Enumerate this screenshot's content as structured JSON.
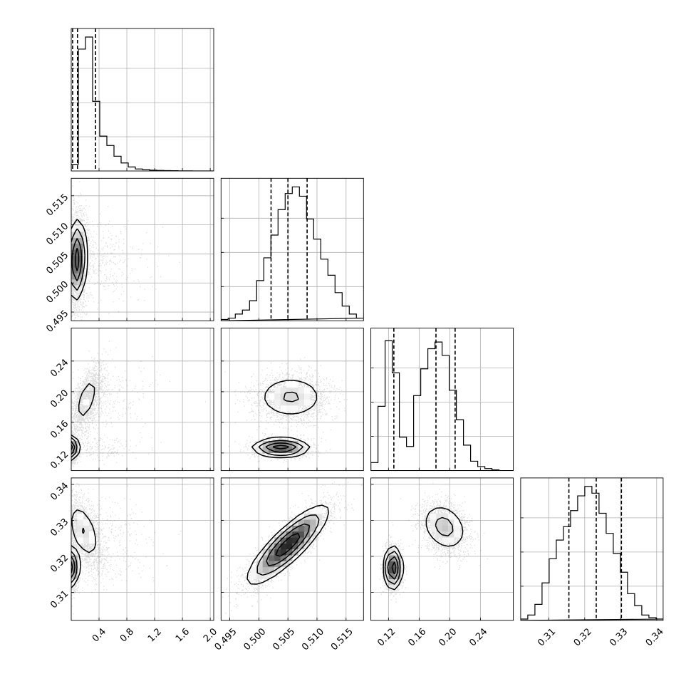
{
  "chart_data": {
    "type": "corner",
    "title": "",
    "variables": [
      {
        "label": "",
        "range": [
          0.0,
          2.05
        ],
        "ticks": [
          0.4,
          0.8,
          1.2,
          1.6,
          2.0
        ],
        "tick_labels": [
          "0.4",
          "0.8",
          "1.2",
          "1.6",
          "2.0"
        ],
        "quantiles": [
          0.02,
          0.09,
          0.35
        ]
      },
      {
        "label": "",
        "range": [
          0.4935,
          0.518
        ],
        "ticks": [
          0.495,
          0.5,
          0.505,
          0.51,
          0.515
        ],
        "tick_labels": [
          "0.495",
          "0.500",
          "0.505",
          "0.510",
          "0.515"
        ],
        "quantiles": [
          0.5021,
          0.505,
          0.5083
        ]
      },
      {
        "label": "",
        "range": [
          0.097,
          0.283
        ],
        "ticks": [
          0.12,
          0.16,
          0.2,
          0.24
        ],
        "tick_labels": [
          "0.12",
          "0.16",
          "0.20",
          "0.24"
        ],
        "quantiles": [
          0.127,
          0.182,
          0.207
        ]
      },
      {
        "label": "",
        "range": [
          0.3022,
          0.3418
        ],
        "ticks": [
          0.31,
          0.32,
          0.33,
          0.34
        ],
        "tick_labels": [
          "0.31",
          "0.32",
          "0.33",
          "0.34"
        ],
        "quantiles": [
          0.3156,
          0.3232,
          0.3302
        ]
      }
    ],
    "histograms": [
      {
        "variable": 0,
        "values": [
          0.05,
          0.91,
          1.0,
          0.52,
          0.26,
          0.19,
          0.11,
          0.06,
          0.03,
          0.015,
          0.01,
          0.006,
          0.004,
          0.003,
          0.002,
          0.001,
          0.001,
          0,
          0,
          0
        ]
      },
      {
        "variable": 1,
        "values": [
          0.01,
          0.02,
          0.05,
          0.08,
          0.15,
          0.3,
          0.47,
          0.64,
          0.83,
          0.95,
          1.0,
          0.93,
          0.76,
          0.61,
          0.46,
          0.34,
          0.21,
          0.11,
          0.05,
          0.02
        ]
      },
      {
        "variable": 2,
        "values": [
          0.06,
          0.48,
          0.97,
          0.73,
          0.25,
          0.18,
          0.56,
          0.76,
          0.91,
          0.96,
          0.86,
          0.6,
          0.38,
          0.19,
          0.07,
          0.03,
          0.015,
          0.005,
          0,
          0
        ]
      },
      {
        "variable": 3,
        "values": [
          0.01,
          0.04,
          0.12,
          0.28,
          0.46,
          0.6,
          0.7,
          0.82,
          0.93,
          1.0,
          0.95,
          0.8,
          0.65,
          0.5,
          0.36,
          0.2,
          0.11,
          0.04,
          0.02,
          0.01
        ]
      }
    ],
    "pairs": [
      {
        "x": 0,
        "y": 1,
        "modes": [
          {
            "mx": 0.08,
            "my": 0.504,
            "sx": 0.07,
            "sy": 0.0035,
            "r": 0.1,
            "w": 1
          }
        ]
      },
      {
        "x": 0,
        "y": 2,
        "modes": [
          {
            "mx": 0.03,
            "my": 0.127,
            "sx": 0.03,
            "sy": 0.008,
            "r": 0,
            "w": 0.45
          },
          {
            "mx": 0.22,
            "my": 0.19,
            "sx": 0.12,
            "sy": 0.022,
            "r": 0.6,
            "w": 0.55
          }
        ]
      },
      {
        "x": 0,
        "y": 3,
        "modes": [
          {
            "mx": 0.03,
            "my": 0.317,
            "sx": 0.03,
            "sy": 0.0028,
            "r": 0,
            "w": 0.45
          },
          {
            "mx": 0.18,
            "my": 0.327,
            "sx": 0.13,
            "sy": 0.0045,
            "r": -0.5,
            "w": 0.55
          }
        ]
      },
      {
        "x": 1,
        "y": 2,
        "modes": [
          {
            "mx": 0.5038,
            "my": 0.127,
            "sx": 0.0025,
            "sy": 0.006,
            "r": 0,
            "w": 0.45
          },
          {
            "mx": 0.5055,
            "my": 0.193,
            "sx": 0.0033,
            "sy": 0.016,
            "r": 0,
            "w": 0.55
          }
        ]
      },
      {
        "x": 1,
        "y": 3,
        "modes": [
          {
            "mx": 0.505,
            "my": 0.3232,
            "sx": 0.0035,
            "sy": 0.0055,
            "r": 0.85,
            "w": 1
          }
        ]
      },
      {
        "x": 2,
        "y": 3,
        "modes": [
          {
            "mx": 0.126,
            "my": 0.3168,
            "sx": 0.006,
            "sy": 0.003,
            "r": 0,
            "w": 0.45
          },
          {
            "mx": 0.193,
            "my": 0.3282,
            "sx": 0.016,
            "sy": 0.0036,
            "r": -0.25,
            "w": 0.55
          }
        ]
      }
    ],
    "grid": true,
    "legend": "none"
  }
}
